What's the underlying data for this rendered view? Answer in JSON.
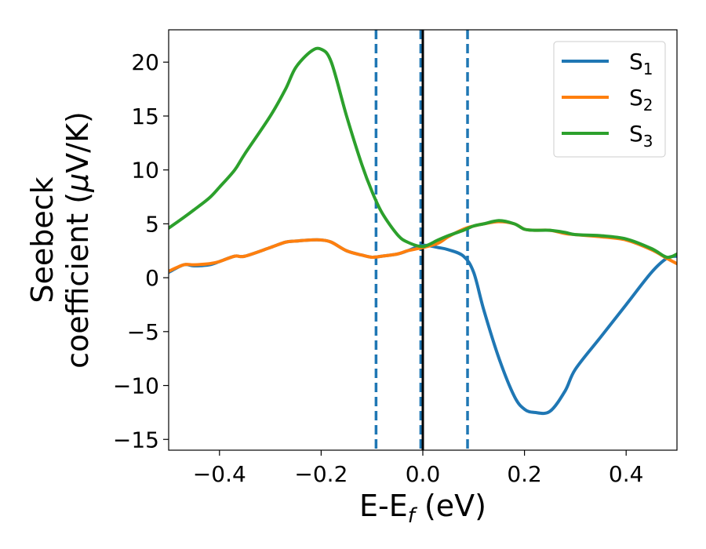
{
  "chart_data": {
    "type": "line",
    "title": "",
    "xlabel": {
      "main": "E-E",
      "sub": "f",
      "suffix": " (eV)"
    },
    "ylabel": {
      "line1": "Seebeck",
      "line2_main": "coefficient  (",
      "line2_mu": "μ",
      "line2_suffix": "V/K)"
    },
    "xlim": [
      -0.5,
      0.5
    ],
    "ylim": [
      -16,
      23
    ],
    "xticks": [
      -0.4,
      -0.2,
      0.0,
      0.2,
      0.4
    ],
    "xtick_labels": [
      "−0.4",
      "−0.2",
      "0.0",
      "0.2",
      "0.4"
    ],
    "yticks": [
      -15,
      -10,
      -5,
      0,
      5,
      10,
      15,
      20
    ],
    "ytick_labels": [
      "−15",
      "−10",
      "−5",
      "0",
      "5",
      "10",
      "15",
      "20"
    ],
    "vlines": [
      {
        "x": -0.092,
        "style": "dashed",
        "color": "#1f77b4"
      },
      {
        "x": -0.004,
        "style": "dashed",
        "color": "#1f77b4"
      },
      {
        "x": 0.0,
        "style": "solid",
        "color": "#000000"
      },
      {
        "x": 0.088,
        "style": "dashed",
        "color": "#1f77b4"
      }
    ],
    "legend_position": "top-right",
    "x": [
      -0.5,
      -0.47,
      -0.45,
      -0.42,
      -0.4,
      -0.37,
      -0.35,
      -0.3,
      -0.27,
      -0.25,
      -0.22,
      -0.2,
      -0.18,
      -0.15,
      -0.12,
      -0.1,
      -0.08,
      -0.05,
      -0.03,
      0.0,
      0.03,
      0.05,
      0.08,
      0.1,
      0.12,
      0.15,
      0.18,
      0.2,
      0.22,
      0.25,
      0.28,
      0.3,
      0.35,
      0.4,
      0.45,
      0.48,
      0.5
    ],
    "series": [
      {
        "name": "S",
        "sub": "1",
        "color": "#1f77b4",
        "values": [
          0.5,
          1.2,
          1.1,
          1.2,
          1.5,
          2.0,
          2.0,
          2.8,
          3.3,
          3.4,
          3.5,
          3.5,
          3.3,
          2.5,
          2.1,
          1.9,
          2.0,
          2.2,
          2.5,
          3.0,
          2.8,
          2.6,
          2.0,
          0.5,
          -3.0,
          -7.5,
          -11.0,
          -12.2,
          -12.5,
          -12.4,
          -10.5,
          -8.5,
          -5.5,
          -2.5,
          0.5,
          1.8,
          2.0
        ]
      },
      {
        "name": "S",
        "sub": "2",
        "color": "#ff7f0e",
        "values": [
          0.6,
          1.2,
          1.2,
          1.3,
          1.5,
          2.0,
          2.0,
          2.8,
          3.3,
          3.4,
          3.5,
          3.5,
          3.3,
          2.5,
          2.1,
          1.9,
          2.0,
          2.2,
          2.5,
          2.8,
          3.2,
          3.8,
          4.5,
          4.8,
          5.0,
          5.2,
          5.0,
          4.5,
          4.4,
          4.4,
          4.1,
          4.0,
          3.8,
          3.5,
          2.6,
          1.8,
          1.3
        ]
      },
      {
        "name": "S",
        "sub": "3",
        "color": "#2ca02c",
        "values": [
          4.6,
          5.6,
          6.3,
          7.4,
          8.4,
          10.0,
          11.5,
          15.0,
          17.5,
          19.5,
          21.0,
          21.2,
          20.0,
          15.0,
          10.5,
          8.0,
          6.0,
          4.0,
          3.3,
          2.9,
          3.5,
          3.9,
          4.4,
          4.8,
          5.0,
          5.3,
          5.0,
          4.5,
          4.4,
          4.4,
          4.2,
          4.0,
          3.9,
          3.6,
          2.7,
          1.9,
          2.2
        ]
      }
    ]
  }
}
